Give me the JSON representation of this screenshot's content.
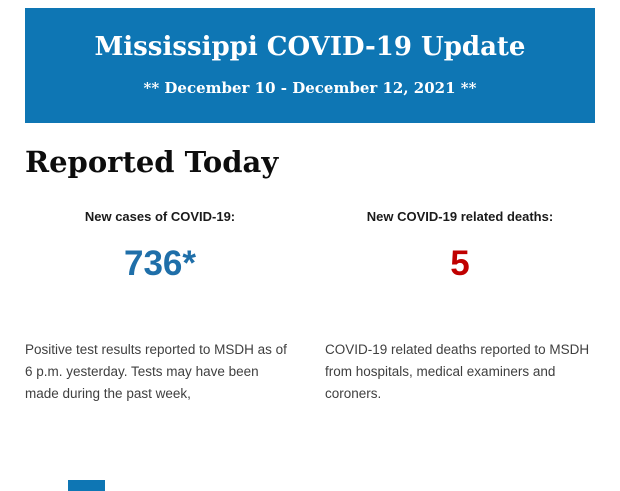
{
  "colors": {
    "banner_bg": "#0e76b4",
    "cases_number": "#1f6fa9",
    "deaths_number": "#c00000"
  },
  "header": {
    "title": "Mississippi COVID-19 Update",
    "subtitle": "** December 10 - December 12, 2021 **"
  },
  "section": {
    "title": "Reported Today"
  },
  "stats": [
    {
      "label": "New cases of COVID-19:",
      "value": "736*",
      "description": "Positive test results reported to MSDH as of 6 p.m. yesterday. Tests may have been made during the past week,"
    },
    {
      "label": "New COVID-19 related deaths:",
      "value": "5",
      "description": "COVID-19 related deaths reported to MSDH from hospitals, medical examiners and coroners."
    }
  ]
}
